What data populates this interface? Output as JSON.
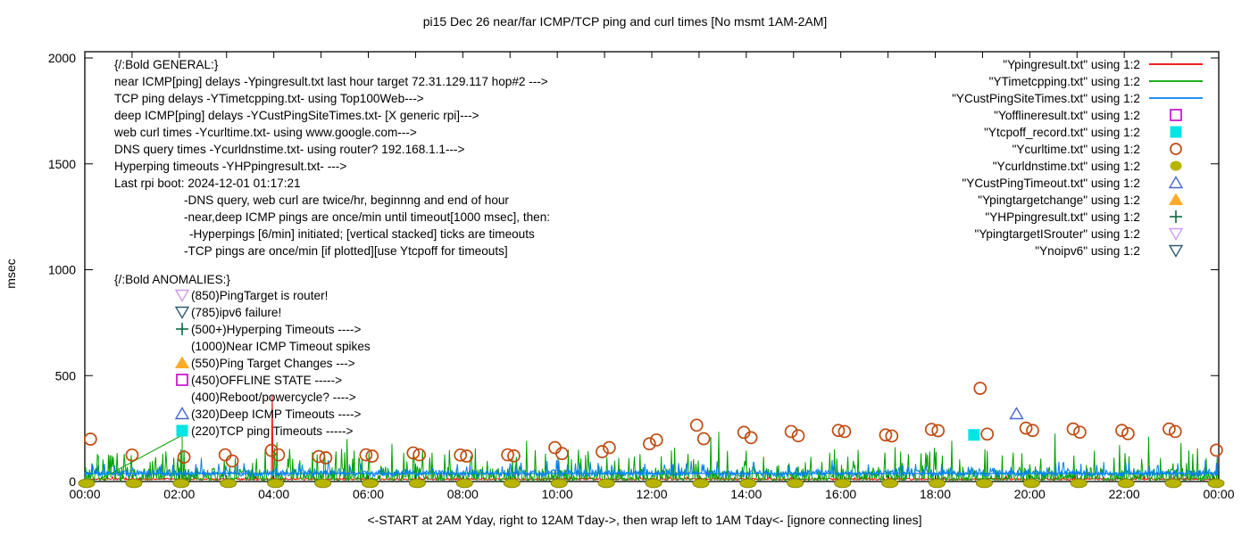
{
  "chart_data": {
    "type": "line+scatter",
    "title": "pi15 Dec 26  near/far ICMP/TCP ping and curl times [No msmt 1AM-2AM]",
    "axes": {
      "ylabel": "msec",
      "xlabel": "<-START at 2AM Yday, right to 12AM Tday->, then wrap left to 1AM Tday<- [ignore connecting lines]",
      "y_ticks": [
        0,
        500,
        1000,
        1500,
        2000
      ],
      "y_tick_labels": [
        "0",
        "500",
        "1000",
        "1500",
        "2000"
      ],
      "y_range_msec": [
        0,
        2000
      ],
      "x_range_hours": [
        0,
        24
      ],
      "x_major_every_hours": 2,
      "x_tick_labels": [
        "00:00",
        "02:00",
        "04:00",
        "06:00",
        "08:00",
        "10:00",
        "12:00",
        "14:00",
        "16:00",
        "18:00",
        "20:00",
        "22:00",
        "00:00"
      ],
      "grid": false
    },
    "legend": {
      "position": "top-right-inside",
      "entries": [
        {
          "label": "\"Ypingresult.txt\" using 1:2",
          "marker": "line",
          "color": "#f00000"
        },
        {
          "label": "\"YTimetcpping.txt\" using 1:2",
          "marker": "line",
          "color": "#00a000"
        },
        {
          "label": "\"YCustPingSiteTimes.txt\" using 1:2",
          "marker": "line",
          "color": "#0080f0"
        },
        {
          "label": "\"Yofflineresult.txt\" using 1:2",
          "marker": "square-open",
          "color": "#c400cc"
        },
        {
          "label": "\"Ytcpoff_record.txt\" using 1:2",
          "marker": "square-filled",
          "color": "#00e5e5"
        },
        {
          "label": "\"Ycurltime.txt\" using 1:2",
          "marker": "circle-open",
          "color": "#bf4a10"
        },
        {
          "label": "\"Ycurldnstime.txt\" using 1:2",
          "marker": "circle-filled",
          "color": "#b8b400"
        },
        {
          "label": "\"YCustPingTimeout.txt\" using 1:2",
          "marker": "triangle-open",
          "color": "#4667d2"
        },
        {
          "label": "\"Ypingtargetchange\" using 1:2",
          "marker": "triangle-filled",
          "color": "#ffaa28"
        },
        {
          "label": "\"YHPpingresult.txt\" using 1:2",
          "marker": "plus",
          "color": "#0a6b40"
        },
        {
          "label": "\"YpingtargetISrouter\" using 1:2",
          "marker": "triangle-down-open",
          "color": "#d09cf0"
        },
        {
          "label": "\"Ynoipv6\" using 1:2",
          "marker": "triangle-down-open",
          "color": "#2e5a72"
        }
      ]
    },
    "annotations": {
      "general_header": "{/:Bold GENERAL:}",
      "general_lines": [
        {
          "text": "near ICMP[ping] delays -Ypingresult.txt last hour target 72.31.129.117 hop#2 --->",
          "indent": 0
        },
        {
          "text": "TCP ping delays -YTimetcpping.txt- using Top100Web--->",
          "indent": 0
        },
        {
          "text": "deep ICMP[ping] delays -YCustPingSiteTimes.txt- [X generic rpi]--->",
          "indent": 0
        },
        {
          "text": "web curl times -Ycurltime.txt- using www.google.com--->",
          "indent": 0
        },
        {
          "text": "DNS query times -Ycurldnstime.txt- using router? 192.168.1.1--->",
          "indent": 0
        },
        {
          "text": "Hyperping timeouts -YHPpingresult.txt- --->",
          "indent": 0
        },
        {
          "text": "Last rpi boot: 2024-12-01 01:17:21",
          "indent": 0
        },
        {
          "text": "-DNS query, web curl are twice/hr, beginnng and end of hour",
          "indent": 1
        },
        {
          "text": "-near,deep ICMP pings are once/min until timeout[1000 msec], then:",
          "indent": 1
        },
        {
          "text": "-Hyperpings [6/min] initiated; [vertical stacked] ticks are timeouts",
          "indent": 2
        },
        {
          "text": "-TCP pings are once/min [if plotted][use Ytcpoff for timeouts]",
          "indent": 1
        }
      ],
      "anomalies_header": "{/:Bold ANOMALIES:}",
      "anomalies": [
        {
          "marker": "triangle-down-open",
          "color": "#d09cf0",
          "text": "(850)PingTarget is router!"
        },
        {
          "marker": "triangle-down-open",
          "color": "#2e5a72",
          "text": "(785)ipv6 failure!"
        },
        {
          "marker": "plus",
          "color": "#0a6b40",
          "text": "(500+)Hyperping Timeouts ---->"
        },
        {
          "marker": "none",
          "color": "",
          "text": "(1000)Near ICMP Timeout spikes"
        },
        {
          "marker": "triangle-filled",
          "color": "#ffaa28",
          "text": "(550)Ping Target Changes --->"
        },
        {
          "marker": "square-open",
          "color": "#c400cc",
          "text": "(450)OFFLINE STATE ----->"
        },
        {
          "marker": "none",
          "color": "",
          "text": "(400)Reboot/powercycle? ---->"
        },
        {
          "marker": "triangle-open",
          "color": "#4667d2",
          "text": "(320)Deep ICMP Timeouts ---->"
        },
        {
          "marker": "square-filled",
          "color": "#00e5e5",
          "text": "(220)TCP ping Timeouts ----->"
        }
      ]
    },
    "series": [
      {
        "name": "Ypingresult.txt",
        "role": "near-icmp-ping-delays",
        "color": "#f00000",
        "style": "noise-line",
        "seed": 99,
        "baseline_ms": 7,
        "jitter_ms": 8,
        "rare_prob": 0.05,
        "rare_extra_ms": 16,
        "spikes_hr_ms": [
          [
            3.97,
            408
          ]
        ]
      },
      {
        "name": "YTimetcpping.txt",
        "role": "tcp-ping-delays",
        "color": "#00a000",
        "style": "noise-line",
        "seed": 7,
        "dist": "grass",
        "baseline_ms": 3,
        "tall_spikes_hr_ms": [
          [
            2.1,
            150
          ],
          [
            4.07,
            185
          ],
          [
            5.55,
            200
          ],
          [
            6.5,
            178
          ],
          [
            9.35,
            192
          ],
          [
            12.48,
            160
          ],
          [
            13.25,
            210
          ],
          [
            13.42,
            235
          ],
          [
            17.15,
            162
          ],
          [
            18.35,
            192
          ],
          [
            20.54,
            226
          ],
          [
            21.9,
            172
          ],
          [
            22.52,
            212
          ],
          [
            23.2,
            182
          ]
        ]
      },
      {
        "name": "YCustPingSiteTimes.txt",
        "role": "deep-icmp-ping-delays",
        "color": "#0080f0",
        "style": "noise-line",
        "seed": 13,
        "baseline_ms": 24,
        "jitter_ms": 30,
        "spike_prob": 0.12,
        "spike_extra_ms": 62,
        "flat_level_ms": 38
      },
      {
        "name": "Ycurltime.txt",
        "role": "web-curl-times",
        "color": "#bf4a10",
        "style": "scatter-circle-open",
        "points_hr_ms": [
          [
            0.12,
            200
          ],
          [
            1.0,
            125
          ],
          [
            2.1,
            115
          ],
          [
            2.97,
            126
          ],
          [
            3.12,
            97
          ],
          [
            3.95,
            147
          ],
          [
            4.1,
            126
          ],
          [
            4.95,
            118
          ],
          [
            5.1,
            112
          ],
          [
            5.95,
            126
          ],
          [
            6.08,
            120
          ],
          [
            6.95,
            135
          ],
          [
            7.08,
            126
          ],
          [
            7.95,
            125
          ],
          [
            8.08,
            120
          ],
          [
            8.95,
            126
          ],
          [
            9.08,
            121
          ],
          [
            9.95,
            160
          ],
          [
            10.1,
            132
          ],
          [
            10.95,
            141
          ],
          [
            11.1,
            160
          ],
          [
            11.95,
            178
          ],
          [
            12.1,
            196
          ],
          [
            12.95,
            266
          ],
          [
            13.1,
            202
          ],
          [
            13.95,
            232
          ],
          [
            14.1,
            207
          ],
          [
            14.95,
            236
          ],
          [
            15.1,
            216
          ],
          [
            15.95,
            241
          ],
          [
            16.08,
            236
          ],
          [
            16.95,
            220
          ],
          [
            17.08,
            215
          ],
          [
            17.92,
            246
          ],
          [
            18.06,
            240
          ],
          [
            18.95,
            440
          ],
          [
            19.1,
            224
          ],
          [
            19.92,
            252
          ],
          [
            20.06,
            241
          ],
          [
            20.92,
            248
          ],
          [
            21.06,
            233
          ],
          [
            21.95,
            241
          ],
          [
            22.08,
            226
          ],
          [
            22.95,
            248
          ],
          [
            23.08,
            236
          ],
          [
            23.95,
            148
          ]
        ]
      },
      {
        "name": "Ycurldnstime.txt",
        "role": "dns-query-times",
        "color": "#b8b400",
        "style": "scatter-dot-wide",
        "points_hr_ms": [
          [
            0,
            2
          ],
          [
            1,
            2
          ],
          [
            2,
            2
          ],
          [
            3,
            2
          ],
          [
            4,
            2
          ],
          [
            5,
            2
          ],
          [
            6,
            2
          ],
          [
            7,
            2
          ],
          [
            8,
            2
          ],
          [
            9,
            2
          ],
          [
            10,
            2
          ],
          [
            11,
            2
          ],
          [
            12,
            2
          ],
          [
            13,
            2
          ],
          [
            14,
            2
          ],
          [
            15,
            2
          ],
          [
            16,
            2
          ],
          [
            17,
            2
          ],
          [
            18,
            2
          ],
          [
            19,
            2
          ],
          [
            20,
            2
          ],
          [
            21,
            2
          ],
          [
            22,
            2
          ],
          [
            23,
            2
          ],
          [
            24,
            2
          ]
        ]
      },
      {
        "name": "Ytcpoff_record.txt",
        "role": "tcp-ping-timeouts",
        "color": "#00e5e5",
        "style": "scatter-square-filled",
        "points_hr_ms": [
          [
            18.82,
            220
          ]
        ],
        "connector_hr_ms": [
          [
            0.3,
            8
          ],
          [
            2.06,
            219
          ],
          [
            2.06,
            8
          ]
        ],
        "connector_color": "#00a000"
      },
      {
        "name": "YCustPingTimeout.txt",
        "role": "deep-icmp-timeouts",
        "color": "#4667d2",
        "style": "scatter-triangle-open",
        "points_hr_ms": [
          [
            19.72,
            320
          ]
        ]
      }
    ]
  }
}
